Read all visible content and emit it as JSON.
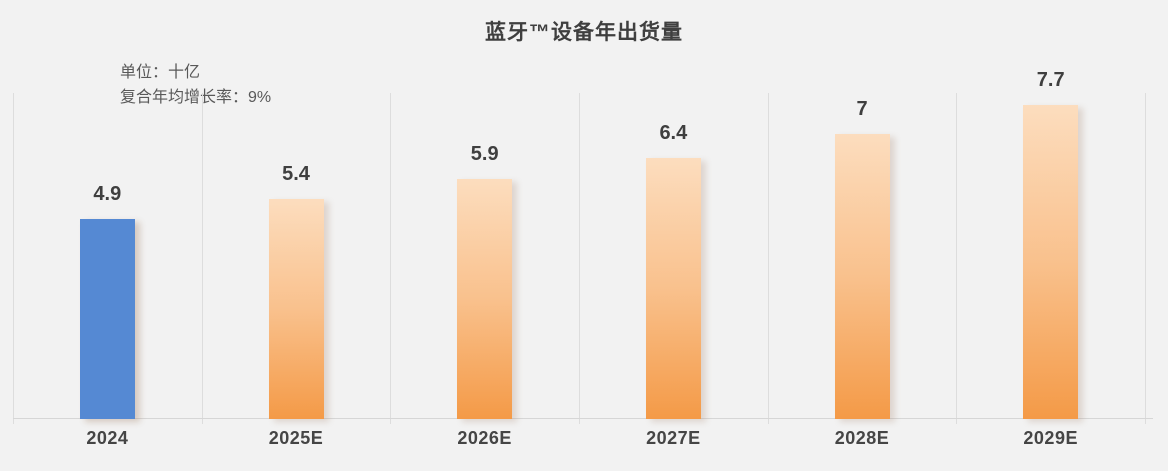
{
  "title": "蓝牙™设备年出货量",
  "subtitle": {
    "line1": "单位：十亿",
    "line2": "复合年均增长率：9%"
  },
  "chart_data": {
    "type": "bar",
    "title": "蓝牙™设备年出货量",
    "subtitle_unit": "单位：十亿",
    "subtitle_cagr": "复合年均增长率：9%",
    "categories": [
      "2024",
      "2025E",
      "2026E",
      "2027E",
      "2028E",
      "2029E"
    ],
    "values": [
      4.9,
      5.4,
      5.9,
      6.4,
      7,
      7.7
    ],
    "labels": [
      "4.9",
      "5.4",
      "5.9",
      "6.4",
      "7",
      "7.7"
    ],
    "xlabel": "",
    "ylabel": "",
    "ylim": [
      0,
      8
    ],
    "grid": "vertical-category-boundaries",
    "legend_position": "none",
    "colors": {
      "bar_actual": "#5589d3",
      "bar_forecast_top": "#fcddbe",
      "bar_forecast_bottom": "#f49a47",
      "background": "#f2f2f2",
      "gridline": "#dddddd",
      "text": "#3f3f3f"
    }
  }
}
